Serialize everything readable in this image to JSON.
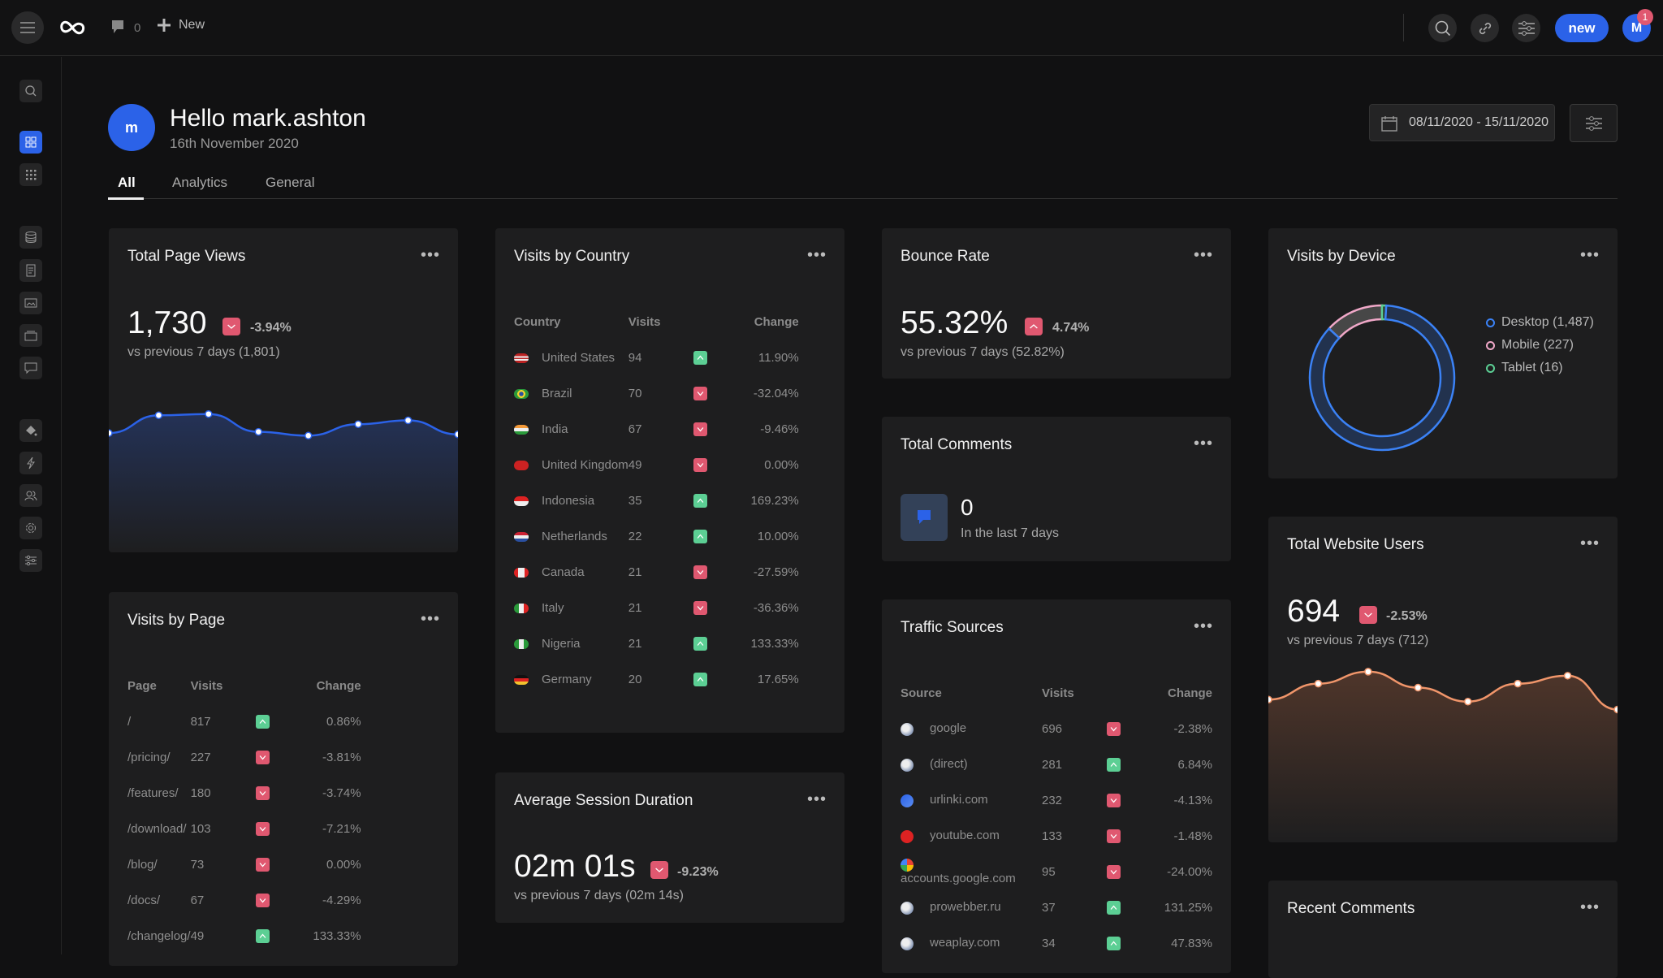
{
  "topbar": {
    "comment_count": "0",
    "new_label": "New",
    "new_button": "new",
    "avatar_initial": "M",
    "notification_count": "1"
  },
  "header": {
    "avatar_initial": "m",
    "greeting": "Hello mark.ashton",
    "date": "16th November 2020",
    "date_range": "08/11/2020 - 15/11/2020"
  },
  "tabs": [
    {
      "label": "All",
      "active": true
    },
    {
      "label": "Analytics"
    },
    {
      "label": "General"
    }
  ],
  "colors": {
    "accent": "#2b62e8",
    "down": "#e05870",
    "up": "#5ccf94",
    "desktop": "#3b82f6",
    "mobile": "#f0a8c8",
    "tablet": "#5ccf94",
    "users_line": "#f0956a"
  },
  "sidebar": {
    "icons": [
      "search-icon",
      "dashboard-icon",
      "apps-grid-icon",
      "database-icon",
      "document-icon",
      "image-icon",
      "folder-icon",
      "comment-icon",
      "paint-bucket-icon",
      "lightning-icon",
      "users-icon",
      "gear-icon",
      "sliders-icon"
    ]
  },
  "page_views": {
    "title": "Total Page Views",
    "value": "1,730",
    "change": "-3.94%",
    "direction": "down",
    "comparison": "vs previous 7 days (1,801)",
    "sparkline": [
      250,
      264,
      265,
      251,
      248,
      257,
      260,
      249
    ]
  },
  "visits_by_country": {
    "title": "Visits by Country",
    "headers": [
      "Country",
      "Visits",
      "Change"
    ],
    "rows": [
      {
        "flag": "flag-us",
        "name": "United States",
        "visits": "94",
        "dir": "up",
        "change": "11.90%"
      },
      {
        "flag": "flag-br",
        "name": "Brazil",
        "visits": "70",
        "dir": "down",
        "change": "-32.04%"
      },
      {
        "flag": "flag-in",
        "name": "India",
        "visits": "67",
        "dir": "down",
        "change": "-9.46%"
      },
      {
        "flag": "flag-gb",
        "name": "United Kingdom",
        "visits": "49",
        "dir": "down",
        "change": "0.00%"
      },
      {
        "flag": "flag-id",
        "name": "Indonesia",
        "visits": "35",
        "dir": "up",
        "change": "169.23%"
      },
      {
        "flag": "flag-nl",
        "name": "Netherlands",
        "visits": "22",
        "dir": "up",
        "change": "10.00%"
      },
      {
        "flag": "flag-ca",
        "name": "Canada",
        "visits": "21",
        "dir": "down",
        "change": "-27.59%"
      },
      {
        "flag": "flag-it",
        "name": "Italy",
        "visits": "21",
        "dir": "down",
        "change": "-36.36%"
      },
      {
        "flag": "flag-ng",
        "name": "Nigeria",
        "visits": "21",
        "dir": "up",
        "change": "133.33%"
      },
      {
        "flag": "flag-de",
        "name": "Germany",
        "visits": "20",
        "dir": "up",
        "change": "17.65%"
      }
    ]
  },
  "bounce_rate": {
    "title": "Bounce Rate",
    "value": "55.32%",
    "change": "4.74%",
    "direction": "up-bad",
    "comparison": "vs previous 7 days (52.82%)"
  },
  "visits_by_device": {
    "title": "Visits by Device",
    "legend": [
      {
        "label": "Desktop (1,487)",
        "value": 1487
      },
      {
        "label": "Mobile (227)",
        "value": 227
      },
      {
        "label": "Tablet (16)",
        "value": 16
      }
    ]
  },
  "visits_by_page": {
    "title": "Visits by Page",
    "headers": [
      "Page",
      "Visits",
      "Change"
    ],
    "rows": [
      {
        "name": "/",
        "visits": "817",
        "dir": "up",
        "change": "0.86%"
      },
      {
        "name": "/pricing/",
        "visits": "227",
        "dir": "down",
        "change": "-3.81%"
      },
      {
        "name": "/features/",
        "visits": "180",
        "dir": "down",
        "change": "-3.74%"
      },
      {
        "name": "/download/",
        "visits": "103",
        "dir": "down",
        "change": "-7.21%"
      },
      {
        "name": "/blog/",
        "visits": "73",
        "dir": "down",
        "change": "0.00%"
      },
      {
        "name": "/docs/",
        "visits": "67",
        "dir": "down",
        "change": "-4.29%"
      },
      {
        "name": "/changelog/",
        "visits": "49",
        "dir": "up",
        "change": "133.33%"
      }
    ]
  },
  "total_comments": {
    "title": "Total Comments",
    "value": "0",
    "caption": "In the last 7 days"
  },
  "traffic_sources": {
    "title": "Traffic Sources",
    "headers": [
      "Source",
      "Visits",
      "Change"
    ],
    "rows": [
      {
        "icon": "globe-icon",
        "name": "google",
        "visits": "696",
        "dir": "down",
        "change": "-2.38%"
      },
      {
        "icon": "globe-icon",
        "name": "(direct)",
        "visits": "281",
        "dir": "up",
        "change": "6.84%"
      },
      {
        "icon": "link-icon",
        "name": "urlinki.com",
        "visits": "232",
        "dir": "down",
        "change": "-4.13%"
      },
      {
        "icon": "youtube-icon",
        "name": "youtube.com",
        "visits": "133",
        "dir": "down",
        "change": "-1.48%"
      },
      {
        "icon": "google-icon",
        "name": "accounts.google.com",
        "visits": "95",
        "dir": "down",
        "change": "-24.00%"
      },
      {
        "icon": "globe-icon",
        "name": "prowebber.ru",
        "visits": "37",
        "dir": "up",
        "change": "131.25%"
      },
      {
        "icon": "globe-icon",
        "name": "weaplay.com",
        "visits": "34",
        "dir": "up",
        "change": "47.83%"
      }
    ]
  },
  "avg_session": {
    "title": "Average Session Duration",
    "value": "02m 01s",
    "change": "-9.23%",
    "direction": "down",
    "comparison": "vs previous 7 days (02m 14s)"
  },
  "website_users": {
    "title": "Total Website Users",
    "value": "694",
    "change": "-2.53%",
    "direction": "down",
    "comparison": "vs previous 7 days (712)",
    "sparkline": [
      100,
      108,
      114,
      106,
      99,
      108,
      112,
      95
    ]
  },
  "recent_comments": {
    "title": "Recent Comments"
  }
}
